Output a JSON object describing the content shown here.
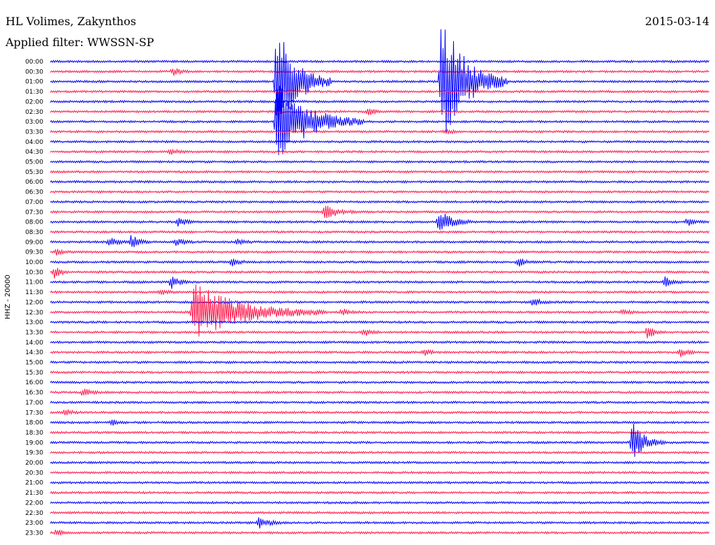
{
  "header": {
    "station": "HL Volimes, Zakynthos",
    "date": "2015-03-14",
    "filter": "Applied filter: WWSSN-SP"
  },
  "channel_label": "HHZ - 20000",
  "colors": {
    "trace_a": "#0000ff",
    "trace_b": "#ff1a4d"
  },
  "chart_data": {
    "type": "line",
    "title": "HL Volimes, Zakynthos",
    "subtitle": "Applied filter: WWSSN-SP",
    "ylabel": "HHZ - 20000",
    "xlabel": "",
    "grid": false,
    "row_minutes": 30,
    "rows": [
      "00:00",
      "00:30",
      "01:00",
      "01:30",
      "02:00",
      "02:30",
      "03:00",
      "03:30",
      "04:00",
      "04:30",
      "05:00",
      "05:30",
      "06:00",
      "06:30",
      "07:00",
      "07:30",
      "08:00",
      "08:30",
      "09:00",
      "09:30",
      "10:00",
      "10:30",
      "11:00",
      "11:30",
      "12:00",
      "12:30",
      "13:00",
      "13:30",
      "14:00",
      "14:30",
      "15:00",
      "15:30",
      "16:00",
      "16:30",
      "17:00",
      "17:30",
      "18:00",
      "18:30",
      "19:00",
      "19:30",
      "20:00",
      "20:30",
      "21:00",
      "21:30",
      "22:00",
      "22:30",
      "23:00",
      "23:30"
    ],
    "events": [
      {
        "row": "00:30",
        "minute": 5.6,
        "amplitude": 0.9
      },
      {
        "row": "01:00",
        "minute": 10.3,
        "amplitude": 12,
        "duration": 2.5
      },
      {
        "row": "01:00",
        "minute": 17.8,
        "amplitude": 14,
        "duration": 3
      },
      {
        "row": "02:30",
        "minute": 14.5,
        "amplitude": 0.6
      },
      {
        "row": "03:00",
        "minute": 10.3,
        "amplitude": 8,
        "duration": 4
      },
      {
        "row": "03:30",
        "minute": 18.0,
        "amplitude": 0.5
      },
      {
        "row": "04:30",
        "minute": 5.5,
        "amplitude": 0.6
      },
      {
        "row": "07:30",
        "minute": 12.5,
        "amplitude": 1.5,
        "duration": 1.5
      },
      {
        "row": "08:00",
        "minute": 5.8,
        "amplitude": 1.2
      },
      {
        "row": "08:00",
        "minute": 17.7,
        "amplitude": 2.5,
        "duration": 1.5
      },
      {
        "row": "08:00",
        "minute": 29.0,
        "amplitude": 0.8
      },
      {
        "row": "09:00",
        "minute": 2.7,
        "amplitude": 1.2
      },
      {
        "row": "09:00",
        "minute": 3.7,
        "amplitude": 1.6
      },
      {
        "row": "09:00",
        "minute": 5.7,
        "amplitude": 1.0
      },
      {
        "row": "09:00",
        "minute": 8.5,
        "amplitude": 0.7
      },
      {
        "row": "09:30",
        "minute": 0.3,
        "amplitude": 0.6
      },
      {
        "row": "10:00",
        "minute": 8.3,
        "amplitude": 0.8
      },
      {
        "row": "10:00",
        "minute": 21.3,
        "amplitude": 0.9
      },
      {
        "row": "10:30",
        "minute": 0.2,
        "amplitude": 1.2
      },
      {
        "row": "11:00",
        "minute": 5.5,
        "amplitude": 1.3
      },
      {
        "row": "11:00",
        "minute": 28.0,
        "amplitude": 1.1
      },
      {
        "row": "11:30",
        "minute": 5.0,
        "amplitude": 0.6
      },
      {
        "row": "12:00",
        "minute": 22.0,
        "amplitude": 0.8
      },
      {
        "row": "12:30",
        "minute": 6.5,
        "amplitude": 6,
        "duration": 6
      },
      {
        "row": "12:30",
        "minute": 13.3,
        "amplitude": 0.7
      },
      {
        "row": "12:30",
        "minute": 26.0,
        "amplitude": 0.6
      },
      {
        "row": "13:30",
        "minute": 14.3,
        "amplitude": 0.7
      },
      {
        "row": "13:30",
        "minute": 27.2,
        "amplitude": 1.3
      },
      {
        "row": "14:30",
        "minute": 17.0,
        "amplitude": 0.6
      },
      {
        "row": "14:30",
        "minute": 28.7,
        "amplitude": 1.0
      },
      {
        "row": "16:30",
        "minute": 1.5,
        "amplitude": 0.9
      },
      {
        "row": "17:30",
        "minute": 0.7,
        "amplitude": 0.6
      },
      {
        "row": "18:00",
        "minute": 2.8,
        "amplitude": 0.5
      },
      {
        "row": "19:00",
        "minute": 26.5,
        "amplitude": 4,
        "duration": 1.5
      },
      {
        "row": "23:00",
        "minute": 9.5,
        "amplitude": 1.0,
        "duration": 1.2
      },
      {
        "row": "23:30",
        "minute": 0.3,
        "amplitude": 0.7
      }
    ]
  }
}
